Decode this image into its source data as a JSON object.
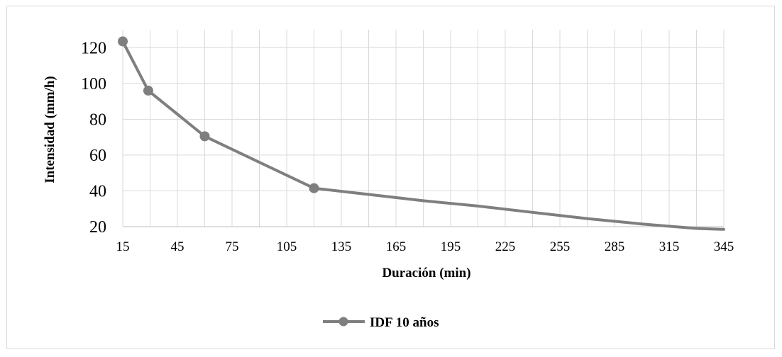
{
  "chart_data": {
    "type": "line",
    "title": "",
    "xlabel": "Duración (min)",
    "ylabel": "Intensidad (mm/h)",
    "x_ticks": [
      15,
      45,
      75,
      105,
      135,
      165,
      195,
      225,
      255,
      285,
      315,
      345
    ],
    "y_ticks": [
      20,
      40,
      60,
      80,
      100,
      120
    ],
    "xlim": [
      15,
      345
    ],
    "ylim": [
      20,
      130
    ],
    "grid": true,
    "legend_position": "bottom-center",
    "series": [
      {
        "name": "IDF 10 años",
        "color": "#7f7f7f",
        "x": [
          15,
          29,
          60,
          120,
          150,
          180,
          210,
          240,
          270,
          300,
          330,
          345
        ],
        "y": [
          123.5,
          96,
          70.5,
          41.5,
          38,
          34.5,
          31.5,
          28,
          24.5,
          21.5,
          19,
          18.5
        ],
        "markers_at": [
          15,
          29,
          60,
          120
        ]
      }
    ]
  }
}
